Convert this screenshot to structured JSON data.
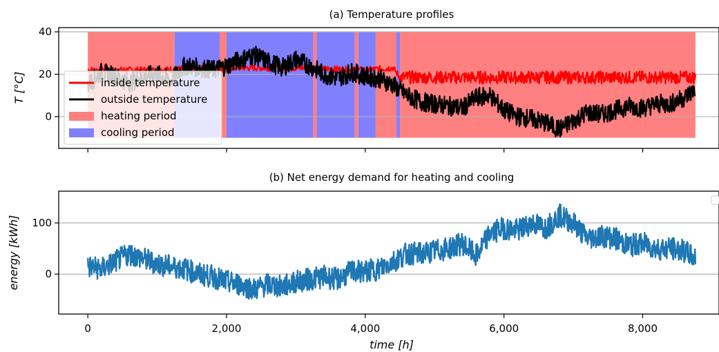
{
  "chart_data": [
    {
      "type": "line",
      "title": "(a) Temperature profiles",
      "ylabel": "T [°C]",
      "xlabel": "",
      "xlim": [
        -420,
        9100
      ],
      "ylim": [
        -15,
        42
      ],
      "yticks": [
        0,
        20,
        40
      ],
      "xticks": [
        0,
        2000,
        4000,
        6000,
        8000
      ],
      "grid": "horizontal",
      "legend_position": "left",
      "legend": [
        {
          "label": "inside temperature",
          "kind": "line",
          "color": "#ff0000"
        },
        {
          "label": "outside temperature",
          "kind": "line",
          "color": "#000000"
        },
        {
          "label": "heating period",
          "kind": "patch",
          "color": "#ff8080"
        },
        {
          "label": "cooling period",
          "kind": "patch",
          "color": "#8080ff"
        }
      ],
      "series": [
        {
          "name": "outside temperature",
          "color": "#000000",
          "x": [
            0,
            200,
            400,
            600,
            800,
            1000,
            1200,
            1400,
            1600,
            1800,
            2000,
            2200,
            2400,
            2600,
            2800,
            3000,
            3200,
            3400,
            3600,
            3800,
            4000,
            4200,
            4400,
            4600,
            4800,
            5000,
            5200,
            5400,
            5600,
            5800,
            6000,
            6200,
            6400,
            6600,
            6800,
            7000,
            7200,
            7400,
            7600,
            7800,
            8000,
            8200,
            8400,
            8600,
            8760
          ],
          "values": [
            15,
            21,
            19,
            16,
            19,
            20,
            17,
            24,
            23,
            22,
            24,
            27,
            29,
            26,
            23,
            27,
            24,
            20,
            18,
            21,
            19,
            18,
            15,
            10,
            7,
            6,
            5,
            4,
            9,
            10,
            3,
            0,
            -1,
            -3,
            -6,
            -2,
            2,
            1,
            3,
            5,
            4,
            6,
            6,
            9,
            13
          ]
        },
        {
          "name": "inside temperature",
          "color": "#ff0000",
          "x": [
            0,
            1000,
            2000,
            3000,
            4000,
            4400,
            4500,
            8760
          ],
          "values": [
            22,
            22,
            23,
            23,
            22,
            23,
            18.5,
            18.5
          ]
        }
      ],
      "periods": [
        {
          "name": "heating period",
          "start": 0,
          "end": 1250
        },
        {
          "name": "cooling period",
          "start": 1250,
          "end": 1900
        },
        {
          "name": "heating period",
          "start": 1900,
          "end": 2000
        },
        {
          "name": "cooling period",
          "start": 2000,
          "end": 3250
        },
        {
          "name": "heating period",
          "start": 3250,
          "end": 3300
        },
        {
          "name": "cooling period",
          "start": 3300,
          "end": 3850
        },
        {
          "name": "heating period",
          "start": 3850,
          "end": 3900
        },
        {
          "name": "cooling period",
          "start": 3900,
          "end": 4150
        },
        {
          "name": "heating period",
          "start": 4150,
          "end": 4450
        },
        {
          "name": "cooling period",
          "start": 4450,
          "end": 4500
        },
        {
          "name": "heating period",
          "start": 4500,
          "end": 8760
        }
      ],
      "period_range": [
        -10,
        40
      ]
    },
    {
      "type": "line",
      "title": "(b) Net energy demand for heating and cooling",
      "ylabel": "energy [kWh]",
      "xlabel": "time [h]",
      "xlim": [
        -420,
        9100
      ],
      "ylim": [
        -78,
        162
      ],
      "yticks": [
        0,
        100
      ],
      "xticks": [
        0,
        2000,
        4000,
        6000,
        8000
      ],
      "xticklabels": [
        "0",
        "2,000",
        "4,000",
        "6,000",
        "8,000"
      ],
      "grid": "horizontal",
      "legend_position": "top-right",
      "series": [
        {
          "name": "",
          "color": "#1f77b4",
          "x": [
            0,
            200,
            400,
            600,
            800,
            1000,
            1200,
            1400,
            1600,
            1800,
            2000,
            2200,
            2400,
            2600,
            2800,
            3000,
            3200,
            3400,
            3600,
            3800,
            4000,
            4200,
            4400,
            4600,
            4800,
            5000,
            5200,
            5400,
            5600,
            5800,
            6000,
            6200,
            6400,
            6600,
            6800,
            7000,
            7200,
            7400,
            7600,
            7800,
            8000,
            8200,
            8400,
            8600,
            8760
          ],
          "values": [
            15,
            10,
            25,
            40,
            30,
            20,
            15,
            10,
            0,
            -5,
            -15,
            -20,
            -30,
            -20,
            -25,
            -15,
            -10,
            -5,
            -10,
            5,
            5,
            10,
            25,
            40,
            40,
            45,
            50,
            60,
            35,
            80,
            90,
            85,
            100,
            90,
            115,
            100,
            70,
            75,
            70,
            55,
            60,
            50,
            50,
            45,
            30
          ]
        }
      ]
    }
  ]
}
